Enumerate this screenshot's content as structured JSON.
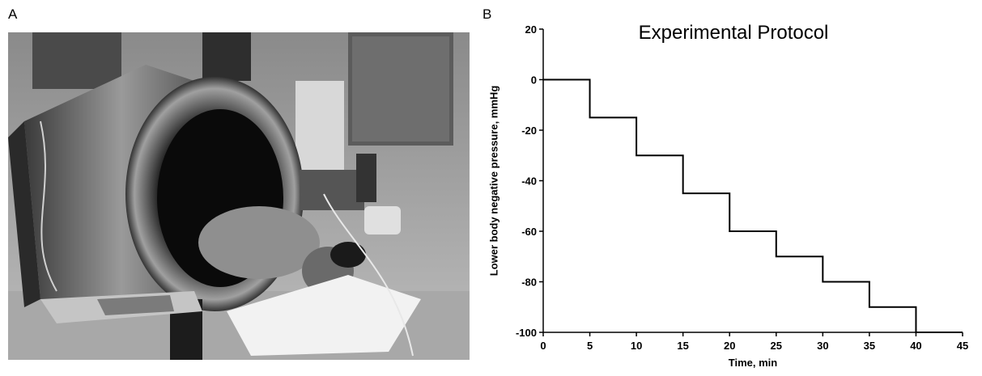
{
  "panels": {
    "a_label": "A",
    "b_label": "B"
  },
  "photo": {
    "description_icon": "lbnp-chamber-photo"
  },
  "chart_data": {
    "type": "line",
    "step": true,
    "title": "Experimental Protocol",
    "xlabel": "Time, min",
    "ylabel": "Lower body negative pressure, mmHg",
    "xlim": [
      0,
      45
    ],
    "ylim": [
      -100,
      20
    ],
    "xticks": [
      0,
      5,
      10,
      15,
      20,
      25,
      30,
      35,
      40,
      45
    ],
    "yticks": [
      20,
      0,
      -20,
      -40,
      -60,
      -80,
      -100
    ],
    "ytick_labels": [
      "20",
      "0",
      "-20",
      "-40",
      "-60",
      "-80",
      "-100"
    ],
    "grid": false,
    "line_color": "#000000",
    "series": [
      {
        "x": [
          0,
          5,
          10,
          15,
          20,
          25,
          30,
          35,
          40,
          45
        ],
        "values": [
          0,
          -15,
          -30,
          -45,
          -60,
          -70,
          -80,
          -90,
          -100,
          -100
        ]
      }
    ]
  }
}
